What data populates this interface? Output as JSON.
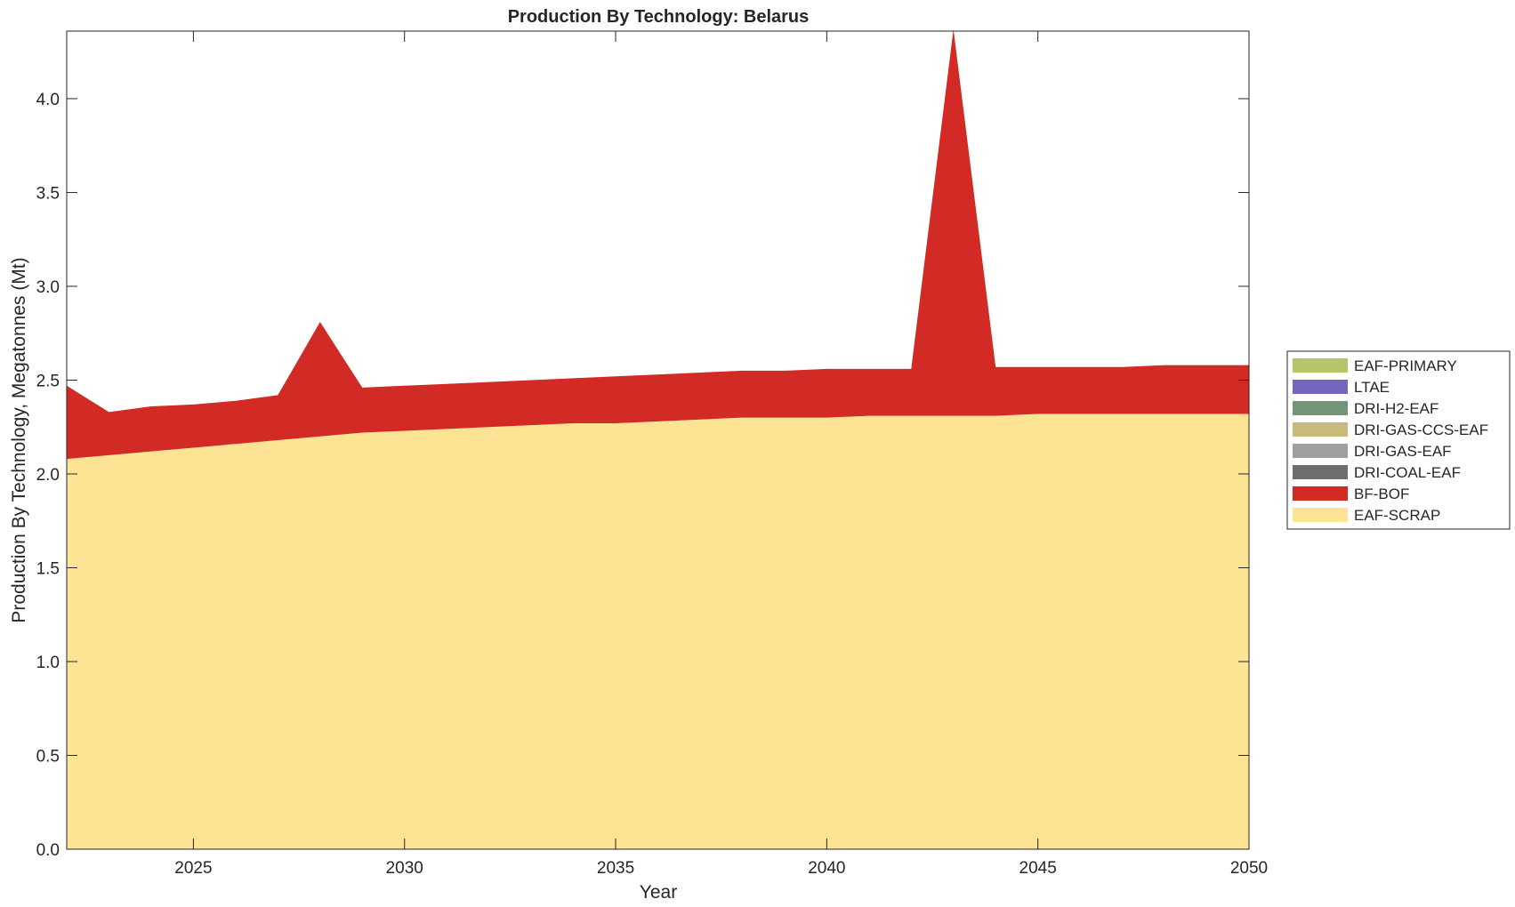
{
  "chart_data": {
    "type": "area",
    "stacked": true,
    "title": "Production By Technology: Belarus",
    "xlabel": "Year",
    "ylabel": "Production By Technology, Megatonnes (Mt)",
    "xlim": [
      2022,
      2050
    ],
    "ylim": [
      0,
      4.36
    ],
    "xticks": [
      2025,
      2030,
      2035,
      2040,
      2045,
      2050
    ],
    "yticks": [
      0.0,
      0.5,
      1.0,
      1.5,
      2.0,
      2.5,
      3.0,
      3.5,
      4.0
    ],
    "ytick_labels": [
      "0.0",
      "0.5",
      "1.0",
      "1.5",
      "2.0",
      "2.5",
      "3.0",
      "3.5",
      "4.0"
    ],
    "grid": false,
    "legend_position": "right",
    "x": [
      2022,
      2023,
      2024,
      2025,
      2026,
      2027,
      2028,
      2029,
      2030,
      2031,
      2032,
      2033,
      2034,
      2035,
      2036,
      2037,
      2038,
      2039,
      2040,
      2041,
      2042,
      2043,
      2044,
      2045,
      2046,
      2047,
      2048,
      2049,
      2050
    ],
    "series": [
      {
        "name": "EAF-SCRAP",
        "color": "#fde394",
        "values": [
          2.08,
          2.1,
          2.12,
          2.14,
          2.16,
          2.18,
          2.2,
          2.22,
          2.23,
          2.24,
          2.25,
          2.26,
          2.27,
          2.27,
          2.28,
          2.29,
          2.3,
          2.3,
          2.3,
          2.31,
          2.31,
          2.31,
          2.31,
          2.32,
          2.32,
          2.32,
          2.32,
          2.32,
          2.32
        ]
      },
      {
        "name": "BF-BOF",
        "color": "#d22a24",
        "values": [
          0.39,
          0.23,
          0.24,
          0.23,
          0.23,
          0.24,
          0.61,
          0.24,
          0.24,
          0.24,
          0.24,
          0.24,
          0.24,
          0.25,
          0.25,
          0.25,
          0.25,
          0.25,
          0.26,
          0.25,
          0.25,
          2.06,
          0.26,
          0.25,
          0.25,
          0.25,
          0.26,
          0.26,
          0.26
        ]
      },
      {
        "name": "DRI-COAL-EAF",
        "color": "#6e6e6e",
        "values": [
          0,
          0,
          0,
          0,
          0,
          0,
          0,
          0,
          0,
          0,
          0,
          0,
          0,
          0,
          0,
          0,
          0,
          0,
          0,
          0,
          0,
          0,
          0,
          0,
          0,
          0,
          0,
          0,
          0
        ]
      },
      {
        "name": "DRI-GAS-EAF",
        "color": "#a0a0a0",
        "values": [
          0,
          0,
          0,
          0,
          0,
          0,
          0,
          0,
          0,
          0,
          0,
          0,
          0,
          0,
          0,
          0,
          0,
          0,
          0,
          0,
          0,
          0,
          0,
          0,
          0,
          0,
          0,
          0,
          0
        ]
      },
      {
        "name": "DRI-GAS-CCS-EAF",
        "color": "#c6bb7d",
        "values": [
          0,
          0,
          0,
          0,
          0,
          0,
          0,
          0,
          0,
          0,
          0,
          0,
          0,
          0,
          0,
          0,
          0,
          0,
          0,
          0,
          0,
          0,
          0,
          0,
          0,
          0,
          0,
          0,
          0
        ]
      },
      {
        "name": "DRI-H2-EAF",
        "color": "#749478",
        "values": [
          0,
          0,
          0,
          0,
          0,
          0,
          0,
          0,
          0,
          0,
          0,
          0,
          0,
          0,
          0,
          0,
          0,
          0,
          0,
          0,
          0,
          0,
          0,
          0,
          0,
          0,
          0,
          0,
          0
        ]
      },
      {
        "name": "LTAE",
        "color": "#7266bd",
        "values": [
          0,
          0,
          0,
          0,
          0,
          0,
          0,
          0,
          0,
          0,
          0,
          0,
          0,
          0,
          0,
          0,
          0,
          0,
          0,
          0,
          0,
          0,
          0,
          0,
          0,
          0,
          0,
          0,
          0
        ]
      },
      {
        "name": "EAF-PRIMARY",
        "color": "#b8c46a",
        "values": [
          0,
          0,
          0,
          0,
          0,
          0,
          0,
          0,
          0,
          0,
          0,
          0,
          0,
          0,
          0,
          0,
          0,
          0,
          0,
          0,
          0,
          0,
          0,
          0,
          0,
          0,
          0,
          0,
          0
        ]
      }
    ],
    "legend_order": [
      "EAF-PRIMARY",
      "LTAE",
      "DRI-H2-EAF",
      "DRI-GAS-CCS-EAF",
      "DRI-GAS-EAF",
      "DRI-COAL-EAF",
      "BF-BOF",
      "EAF-SCRAP"
    ]
  }
}
